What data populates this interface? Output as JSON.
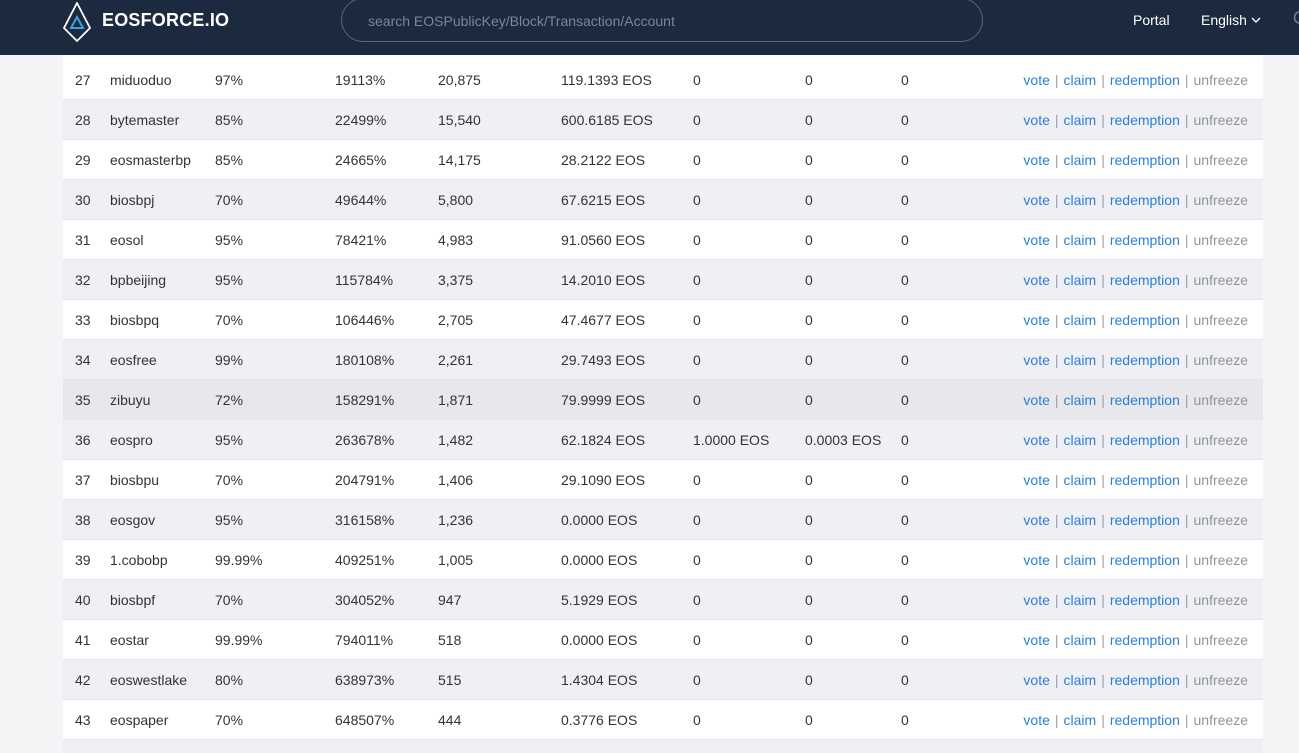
{
  "header": {
    "brand": "EOSFORCE.IO",
    "search_placeholder": "search EOSPublicKey/Block/Transaction/Account",
    "nav_portal": "Portal",
    "nav_language": "English"
  },
  "actions": {
    "vote": "vote",
    "claim": "claim",
    "redemption": "redemption",
    "unfreeze": "unfreeze",
    "separator": "|"
  },
  "rows": [
    {
      "rank": "27",
      "name": "miduoduo",
      "rate": "97%",
      "ratio": "19113%",
      "votes": "20,875",
      "reward": "119.1393 EOS",
      "col_a": "0",
      "col_b": "0",
      "col_c": "0"
    },
    {
      "rank": "28",
      "name": "bytemaster",
      "rate": "85%",
      "ratio": "22499%",
      "votes": "15,540",
      "reward": "600.6185 EOS",
      "col_a": "0",
      "col_b": "0",
      "col_c": "0"
    },
    {
      "rank": "29",
      "name": "eosmasterbp",
      "rate": "85%",
      "ratio": "24665%",
      "votes": "14,175",
      "reward": "28.2122 EOS",
      "col_a": "0",
      "col_b": "0",
      "col_c": "0"
    },
    {
      "rank": "30",
      "name": "biosbpj",
      "rate": "70%",
      "ratio": "49644%",
      "votes": "5,800",
      "reward": "67.6215 EOS",
      "col_a": "0",
      "col_b": "0",
      "col_c": "0"
    },
    {
      "rank": "31",
      "name": "eosol",
      "rate": "95%",
      "ratio": "78421%",
      "votes": "4,983",
      "reward": "91.0560 EOS",
      "col_a": "0",
      "col_b": "0",
      "col_c": "0"
    },
    {
      "rank": "32",
      "name": "bpbeijing",
      "rate": "95%",
      "ratio": "115784%",
      "votes": "3,375",
      "reward": "14.2010 EOS",
      "col_a": "0",
      "col_b": "0",
      "col_c": "0"
    },
    {
      "rank": "33",
      "name": "biosbpq",
      "rate": "70%",
      "ratio": "106446%",
      "votes": "2,705",
      "reward": "47.4677 EOS",
      "col_a": "0",
      "col_b": "0",
      "col_c": "0"
    },
    {
      "rank": "34",
      "name": "eosfree",
      "rate": "99%",
      "ratio": "180108%",
      "votes": "2,261",
      "reward": "29.7493 EOS",
      "col_a": "0",
      "col_b": "0",
      "col_c": "0"
    },
    {
      "rank": "35",
      "name": "zibuyu",
      "rate": "72%",
      "ratio": "158291%",
      "votes": "1,871",
      "reward": "79.9999 EOS",
      "col_a": "0",
      "col_b": "0",
      "col_c": "0"
    },
    {
      "rank": "36",
      "name": "eospro",
      "rate": "95%",
      "ratio": "263678%",
      "votes": "1,482",
      "reward": "62.1824 EOS",
      "col_a": "1.0000 EOS",
      "col_b": "0.0003 EOS",
      "col_c": "0"
    },
    {
      "rank": "37",
      "name": "biosbpu",
      "rate": "70%",
      "ratio": "204791%",
      "votes": "1,406",
      "reward": "29.1090 EOS",
      "col_a": "0",
      "col_b": "0",
      "col_c": "0"
    },
    {
      "rank": "38",
      "name": "eosgov",
      "rate": "95%",
      "ratio": "316158%",
      "votes": "1,236",
      "reward": "0.0000 EOS",
      "col_a": "0",
      "col_b": "0",
      "col_c": "0"
    },
    {
      "rank": "39",
      "name": "1.cobobp",
      "rate": "99.99%",
      "ratio": "409251%",
      "votes": "1,005",
      "reward": "0.0000 EOS",
      "col_a": "0",
      "col_b": "0",
      "col_c": "0"
    },
    {
      "rank": "40",
      "name": "biosbpf",
      "rate": "70%",
      "ratio": "304052%",
      "votes": "947",
      "reward": "5.1929 EOS",
      "col_a": "0",
      "col_b": "0",
      "col_c": "0"
    },
    {
      "rank": "41",
      "name": "eostar",
      "rate": "99.99%",
      "ratio": "794011%",
      "votes": "518",
      "reward": "0.0000 EOS",
      "col_a": "0",
      "col_b": "0",
      "col_c": "0"
    },
    {
      "rank": "42",
      "name": "eoswestlake",
      "rate": "80%",
      "ratio": "638973%",
      "votes": "515",
      "reward": "1.4304 EOS",
      "col_a": "0",
      "col_b": "0",
      "col_c": "0"
    },
    {
      "rank": "43",
      "name": "eospaper",
      "rate": "70%",
      "ratio": "648507%",
      "votes": "444",
      "reward": "0.3776 EOS",
      "col_a": "0",
      "col_b": "0",
      "col_c": "0"
    }
  ],
  "hover_row_rank": "35",
  "colors": {
    "header_bg": "#1b2a3f",
    "link": "#2b7fd4",
    "disabled_link": "#909399",
    "row_alt": "#eff0f5"
  }
}
